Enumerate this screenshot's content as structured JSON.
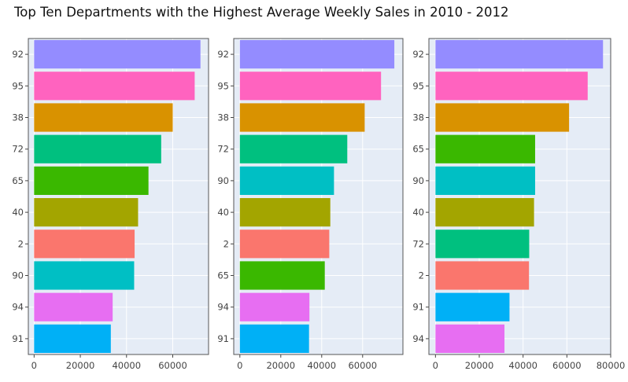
{
  "title": "Top Ten Departments with the Highest Average Weekly Sales in 2010 - 2012",
  "colors": {
    "plot_background": "#e5ecf6",
    "panel_border": "#555555",
    "grid": "#ffffff",
    "dept": {
      "92": "#948cff",
      "95": "#ff63bf",
      "38": "#d99200",
      "72": "#00c07f",
      "65": "#3ab800",
      "40": "#a3a500",
      "2": "#fa766d",
      "90": "#00bfc4",
      "94": "#e76ef2",
      "91": "#00b0f6"
    }
  },
  "chart_data": [
    {
      "type": "bar",
      "orientation": "horizontal",
      "categories": [
        "92",
        "95",
        "38",
        "72",
        "65",
        "40",
        "2",
        "90",
        "94",
        "91"
      ],
      "values": [
        72000,
        69500,
        60000,
        55000,
        49500,
        45000,
        43500,
        43300,
        34000,
        33200
      ],
      "xlim": [
        -2500,
        75500
      ],
      "xticks": [
        0,
        20000,
        40000,
        60000
      ],
      "xtick_labels": [
        "0",
        "20000",
        "40000",
        "60000"
      ],
      "grid": true
    },
    {
      "type": "bar",
      "orientation": "horizontal",
      "categories": [
        "92",
        "95",
        "38",
        "72",
        "90",
        "40",
        "2",
        "65",
        "94",
        "91"
      ],
      "values": [
        75500,
        69000,
        61000,
        52500,
        46000,
        44200,
        43700,
        41500,
        34000,
        33800
      ],
      "xlim": [
        -3000,
        79700
      ],
      "xticks": [
        0,
        20000,
        40000,
        60000
      ],
      "xtick_labels": [
        "0",
        "20000",
        "40000",
        "60000"
      ],
      "grid": true
    },
    {
      "type": "bar",
      "orientation": "horizontal",
      "categories": [
        "92",
        "95",
        "38",
        "65",
        "90",
        "40",
        "72",
        "2",
        "91",
        "94"
      ],
      "values": [
        76500,
        69500,
        61000,
        45500,
        45500,
        45000,
        42800,
        42700,
        33800,
        31500
      ],
      "xlim": [
        -3000,
        80000
      ],
      "xticks": [
        0,
        20000,
        40000,
        60000,
        80000
      ],
      "xtick_labels": [
        "0",
        "20000",
        "40000",
        "60000",
        "80000"
      ],
      "grid": true
    }
  ]
}
